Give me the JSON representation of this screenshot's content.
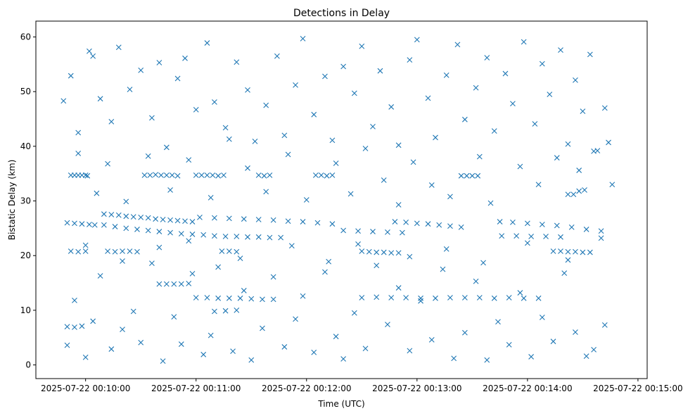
{
  "chart_data": {
    "type": "scatter",
    "title": "Detections in Delay",
    "xlabel": "Time (UTC)",
    "ylabel": "Bistatic Delay (km)",
    "x_units": "seconds after 2025-07-22 00:10:00",
    "xlim": [
      -27,
      305
    ],
    "ylim": [
      -2.5,
      62.9
    ],
    "grid": false,
    "marker": "x",
    "color": "#1f77b4",
    "x_ticks": [
      {
        "value": 0,
        "label": "2025-07-22 00:10:00"
      },
      {
        "value": 60,
        "label": "2025-07-22 00:11:00"
      },
      {
        "value": 120,
        "label": "2025-07-22 00:12:00"
      },
      {
        "value": 180,
        "label": "2025-07-22 00:13:00"
      },
      {
        "value": 240,
        "label": "2025-07-22 00:14:00"
      },
      {
        "value": 300,
        "label": "2025-07-22 00:15:00"
      }
    ],
    "y_ticks": [
      {
        "value": 0,
        "label": "0"
      },
      {
        "value": 10,
        "label": "10"
      },
      {
        "value": 20,
        "label": "20"
      },
      {
        "value": 30,
        "label": "30"
      },
      {
        "value": 40,
        "label": "40"
      },
      {
        "value": 50,
        "label": "50"
      },
      {
        "value": 60,
        "label": "60"
      }
    ],
    "points": [
      [
        -8,
        34.7
      ],
      [
        -6,
        34.7
      ],
      [
        -4,
        34.7
      ],
      [
        -2,
        34.7
      ],
      [
        0,
        34.7
      ],
      [
        1,
        34.6
      ],
      [
        32,
        34.7
      ],
      [
        35,
        34.7
      ],
      [
        38,
        34.8
      ],
      [
        41,
        34.7
      ],
      [
        44,
        34.7
      ],
      [
        47,
        34.7
      ],
      [
        50,
        34.6
      ],
      [
        60,
        34.7
      ],
      [
        63,
        34.7
      ],
      [
        66,
        34.7
      ],
      [
        69,
        34.7
      ],
      [
        72,
        34.6
      ],
      [
        75,
        34.7
      ],
      [
        94,
        34.7
      ],
      [
        97,
        34.6
      ],
      [
        100,
        34.7
      ],
      [
        125,
        34.7
      ],
      [
        128,
        34.7
      ],
      [
        131,
        34.6
      ],
      [
        134,
        34.7
      ],
      [
        204,
        34.6
      ],
      [
        207,
        34.6
      ],
      [
        210,
        34.6
      ],
      [
        213,
        34.6
      ],
      [
        262,
        31.2
      ],
      [
        265,
        31.2
      ],
      [
        268,
        31.8
      ],
      [
        271,
        32.0
      ],
      [
        10,
        27.6
      ],
      [
        14,
        27.5
      ],
      [
        18,
        27.4
      ],
      [
        22,
        27.2
      ],
      [
        26,
        27.1
      ],
      [
        30,
        27.0
      ],
      [
        34,
        26.9
      ],
      [
        38,
        26.7
      ],
      [
        42,
        26.6
      ],
      [
        46,
        26.5
      ],
      [
        50,
        26.4
      ],
      [
        54,
        26.3
      ],
      [
        58,
        26.2
      ],
      [
        10,
        25.6
      ],
      [
        16,
        25.3
      ],
      [
        22,
        25.0
      ],
      [
        28,
        24.8
      ],
      [
        34,
        24.6
      ],
      [
        40,
        24.4
      ],
      [
        46,
        24.2
      ],
      [
        52,
        24.0
      ],
      [
        58,
        23.9
      ],
      [
        64,
        23.8
      ],
      [
        70,
        23.6
      ],
      [
        76,
        23.5
      ],
      [
        82,
        23.5
      ],
      [
        88,
        23.4
      ],
      [
        94,
        23.4
      ],
      [
        100,
        23.3
      ],
      [
        106,
        23.3
      ],
      [
        -10,
        26.0
      ],
      [
        -6,
        25.9
      ],
      [
        -2,
        25.8
      ],
      [
        2,
        25.7
      ],
      [
        5,
        25.6
      ],
      [
        62,
        27.0
      ],
      [
        70,
        26.9
      ],
      [
        78,
        26.8
      ],
      [
        86,
        26.7
      ],
      [
        94,
        26.6
      ],
      [
        102,
        26.5
      ],
      [
        110,
        26.3
      ],
      [
        118,
        26.2
      ],
      [
        126,
        26.0
      ],
      [
        134,
        25.8
      ],
      [
        140,
        24.6
      ],
      [
        148,
        24.5
      ],
      [
        156,
        24.4
      ],
      [
        164,
        24.3
      ],
      [
        172,
        24.2
      ],
      [
        168,
        26.2
      ],
      [
        174,
        26.1
      ],
      [
        180,
        25.9
      ],
      [
        186,
        25.8
      ],
      [
        192,
        25.6
      ],
      [
        198,
        25.4
      ],
      [
        204,
        25.2
      ],
      [
        225,
        26.2
      ],
      [
        232,
        26.1
      ],
      [
        240,
        25.9
      ],
      [
        248,
        25.7
      ],
      [
        256,
        25.5
      ],
      [
        264,
        25.2
      ],
      [
        272,
        24.8
      ],
      [
        280,
        24.5
      ],
      [
        226,
        23.6
      ],
      [
        234,
        23.6
      ],
      [
        242,
        23.5
      ],
      [
        250,
        23.5
      ],
      [
        258,
        23.4
      ],
      [
        -8,
        20.8
      ],
      [
        -4,
        20.7
      ],
      [
        0,
        20.8
      ],
      [
        12,
        20.8
      ],
      [
        16,
        20.7
      ],
      [
        20,
        20.8
      ],
      [
        24,
        20.8
      ],
      [
        28,
        20.7
      ],
      [
        74,
        20.8
      ],
      [
        78,
        20.8
      ],
      [
        82,
        20.7
      ],
      [
        150,
        20.8
      ],
      [
        154,
        20.7
      ],
      [
        158,
        20.6
      ],
      [
        162,
        20.6
      ],
      [
        166,
        20.5
      ],
      [
        170,
        20.5
      ],
      [
        254,
        20.8
      ],
      [
        258,
        20.8
      ],
      [
        262,
        20.7
      ],
      [
        266,
        20.7
      ],
      [
        270,
        20.6
      ],
      [
        274,
        20.6
      ],
      [
        60,
        12.3
      ],
      [
        66,
        12.3
      ],
      [
        72,
        12.2
      ],
      [
        78,
        12.2
      ],
      [
        84,
        12.2
      ],
      [
        90,
        12.1
      ],
      [
        96,
        12.0
      ],
      [
        102,
        12.0
      ],
      [
        150,
        12.3
      ],
      [
        158,
        12.4
      ],
      [
        166,
        12.3
      ],
      [
        174,
        12.3
      ],
      [
        182,
        12.2
      ],
      [
        190,
        12.2
      ],
      [
        198,
        12.3
      ],
      [
        206,
        12.3
      ],
      [
        214,
        12.3
      ],
      [
        222,
        12.2
      ],
      [
        230,
        12.3
      ],
      [
        238,
        12.2
      ],
      [
        246,
        12.2
      ],
      [
        40,
        14.8
      ],
      [
        44,
        14.8
      ],
      [
        48,
        14.8
      ],
      [
        52,
        14.8
      ],
      [
        56,
        14.9
      ],
      [
        70,
        9.8
      ],
      [
        76,
        9.9
      ],
      [
        82,
        10.0
      ],
      [
        -10,
        7.0
      ],
      [
        -6,
        6.9
      ],
      [
        -2,
        7.1
      ],
      [
        -12,
        48.3
      ],
      [
        -8,
        52.9
      ],
      [
        -4,
        42.5
      ],
      [
        2,
        57.4
      ],
      [
        4,
        56.5
      ],
      [
        8,
        48.7
      ],
      [
        14,
        44.5
      ],
      [
        18,
        58.1
      ],
      [
        24,
        50.4
      ],
      [
        30,
        53.9
      ],
      [
        36,
        45.2
      ],
      [
        40,
        55.3
      ],
      [
        44,
        39.8
      ],
      [
        50,
        52.4
      ],
      [
        54,
        56.1
      ],
      [
        60,
        46.7
      ],
      [
        66,
        58.9
      ],
      [
        70,
        48.1
      ],
      [
        76,
        43.4
      ],
      [
        82,
        55.4
      ],
      [
        88,
        50.3
      ],
      [
        92,
        40.9
      ],
      [
        98,
        47.5
      ],
      [
        104,
        56.5
      ],
      [
        108,
        42.0
      ],
      [
        114,
        51.2
      ],
      [
        118,
        59.7
      ],
      [
        124,
        45.8
      ],
      [
        130,
        52.8
      ],
      [
        134,
        41.1
      ],
      [
        140,
        54.6
      ],
      [
        146,
        49.7
      ],
      [
        150,
        58.3
      ],
      [
        156,
        43.6
      ],
      [
        160,
        53.8
      ],
      [
        166,
        47.2
      ],
      [
        170,
        40.2
      ],
      [
        176,
        55.8
      ],
      [
        180,
        59.5
      ],
      [
        186,
        48.8
      ],
      [
        190,
        41.6
      ],
      [
        196,
        53.0
      ],
      [
        202,
        58.6
      ],
      [
        206,
        44.9
      ],
      [
        212,
        50.7
      ],
      [
        218,
        56.2
      ],
      [
        222,
        42.8
      ],
      [
        228,
        53.3
      ],
      [
        232,
        47.8
      ],
      [
        238,
        59.1
      ],
      [
        244,
        44.1
      ],
      [
        248,
        55.1
      ],
      [
        252,
        49.5
      ],
      [
        258,
        57.6
      ],
      [
        262,
        40.4
      ],
      [
        266,
        52.1
      ],
      [
        270,
        46.4
      ],
      [
        274,
        56.8
      ],
      [
        278,
        39.2
      ],
      [
        282,
        47.0
      ],
      [
        -10,
        3.6
      ],
      [
        -6,
        11.8
      ],
      [
        0,
        1.4
      ],
      [
        4,
        8.0
      ],
      [
        8,
        16.3
      ],
      [
        14,
        2.9
      ],
      [
        20,
        6.5
      ],
      [
        26,
        9.8
      ],
      [
        30,
        4.1
      ],
      [
        36,
        18.6
      ],
      [
        42,
        0.7
      ],
      [
        48,
        8.8
      ],
      [
        52,
        3.8
      ],
      [
        58,
        16.7
      ],
      [
        64,
        1.9
      ],
      [
        68,
        5.4
      ],
      [
        72,
        17.9
      ],
      [
        80,
        2.5
      ],
      [
        86,
        13.6
      ],
      [
        90,
        0.9
      ],
      [
        96,
        6.7
      ],
      [
        102,
        16.1
      ],
      [
        108,
        3.3
      ],
      [
        114,
        8.4
      ],
      [
        118,
        12.6
      ],
      [
        124,
        2.3
      ],
      [
        130,
        17.0
      ],
      [
        136,
        5.2
      ],
      [
        140,
        1.1
      ],
      [
        146,
        9.5
      ],
      [
        152,
        3.0
      ],
      [
        158,
        18.2
      ],
      [
        164,
        7.4
      ],
      [
        170,
        14.1
      ],
      [
        176,
        2.6
      ],
      [
        182,
        11.7
      ],
      [
        188,
        4.6
      ],
      [
        194,
        17.5
      ],
      [
        200,
        1.2
      ],
      [
        206,
        5.9
      ],
      [
        212,
        15.3
      ],
      [
        218,
        0.9
      ],
      [
        224,
        7.9
      ],
      [
        230,
        3.7
      ],
      [
        236,
        13.2
      ],
      [
        242,
        1.5
      ],
      [
        248,
        8.7
      ],
      [
        254,
        4.3
      ],
      [
        260,
        16.8
      ],
      [
        266,
        6.0
      ],
      [
        272,
        1.6
      ],
      [
        276,
        2.8
      ],
      [
        282,
        7.3
      ],
      [
        -4,
        38.7
      ],
      [
        6,
        31.4
      ],
      [
        12,
        36.8
      ],
      [
        22,
        29.9
      ],
      [
        34,
        38.2
      ],
      [
        46,
        32.0
      ],
      [
        56,
        37.5
      ],
      [
        68,
        30.6
      ],
      [
        78,
        41.3
      ],
      [
        88,
        36.0
      ],
      [
        98,
        31.7
      ],
      [
        110,
        38.5
      ],
      [
        120,
        30.2
      ],
      [
        136,
        36.9
      ],
      [
        144,
        31.3
      ],
      [
        152,
        39.6
      ],
      [
        162,
        33.8
      ],
      [
        170,
        29.3
      ],
      [
        178,
        37.1
      ],
      [
        188,
        32.9
      ],
      [
        198,
        30.8
      ],
      [
        214,
        38.1
      ],
      [
        220,
        29.6
      ],
      [
        236,
        36.3
      ],
      [
        246,
        33.0
      ],
      [
        256,
        37.9
      ],
      [
        268,
        35.6
      ],
      [
        276,
        39.1
      ],
      [
        284,
        40.7
      ],
      [
        286,
        33.0
      ],
      [
        0,
        21.9
      ],
      [
        20,
        19.0
      ],
      [
        40,
        21.5
      ],
      [
        56,
        22.7
      ],
      [
        84,
        19.5
      ],
      [
        112,
        21.8
      ],
      [
        132,
        18.9
      ],
      [
        148,
        22.1
      ],
      [
        176,
        19.8
      ],
      [
        196,
        21.2
      ],
      [
        216,
        18.7
      ],
      [
        240,
        22.3
      ],
      [
        262,
        19.2
      ],
      [
        280,
        23.2
      ]
    ]
  }
}
